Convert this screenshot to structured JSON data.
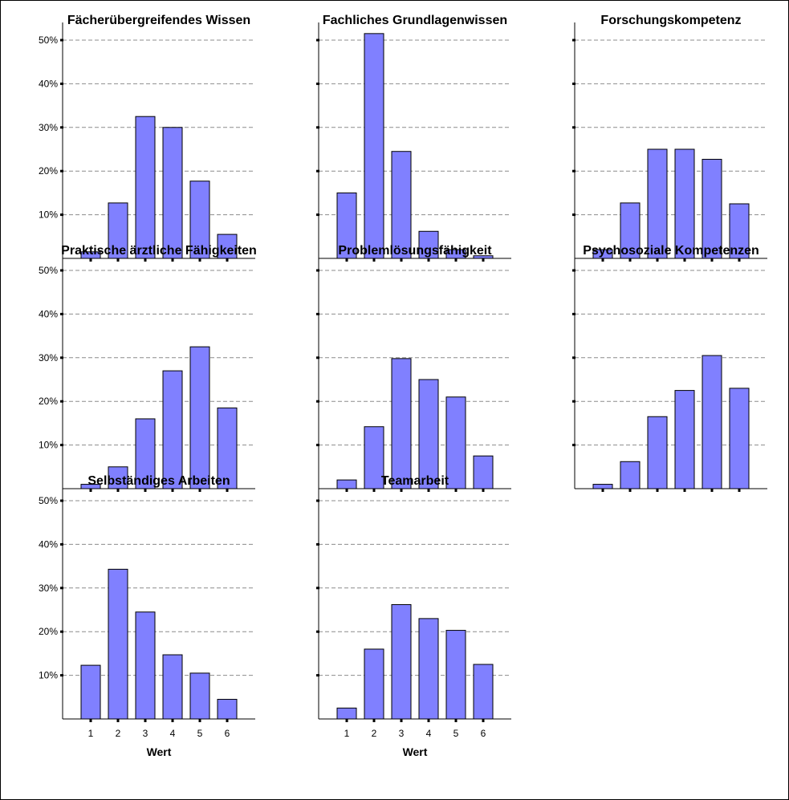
{
  "chart_data": {
    "type": "bar",
    "layout": "small-multiples-grid",
    "bar_color": "#8080ff",
    "grid": true,
    "ylim": [
      0,
      0.5
    ],
    "y_ticks": [
      "10%",
      "20%",
      "30%",
      "40%",
      "50%"
    ],
    "categories": [
      "1",
      "2",
      "3",
      "4",
      "5",
      "6"
    ],
    "xlabel": "Wert",
    "panels": [
      {
        "title": "Fächerübergreifendes Wissen",
        "values": [
          0.015,
          0.127,
          0.325,
          0.3,
          0.177,
          0.055
        ]
      },
      {
        "title": "Fachliches Grundlagenwissen",
        "values": [
          0.15,
          0.515,
          0.245,
          0.062,
          0.02,
          0.006
        ]
      },
      {
        "title": "Forschungskompetenz",
        "values": [
          0.02,
          0.127,
          0.25,
          0.25,
          0.227,
          0.125
        ]
      },
      {
        "title": "Praktische ärztliche Fähigkeiten",
        "values": [
          0.01,
          0.05,
          0.16,
          0.27,
          0.325,
          0.185
        ]
      },
      {
        "title": "Problemlösungsfähigkeit",
        "values": [
          0.02,
          0.142,
          0.298,
          0.25,
          0.21,
          0.075
        ]
      },
      {
        "title": "Psychosoziale Kompetenzen",
        "values": [
          0.01,
          0.062,
          0.165,
          0.225,
          0.305,
          0.23
        ]
      },
      {
        "title": "Selbständiges Arbeiten",
        "values": [
          0.123,
          0.343,
          0.245,
          0.147,
          0.105,
          0.045
        ]
      },
      {
        "title": "Teamarbeit",
        "values": [
          0.025,
          0.16,
          0.262,
          0.23,
          0.203,
          0.125
        ]
      }
    ]
  }
}
